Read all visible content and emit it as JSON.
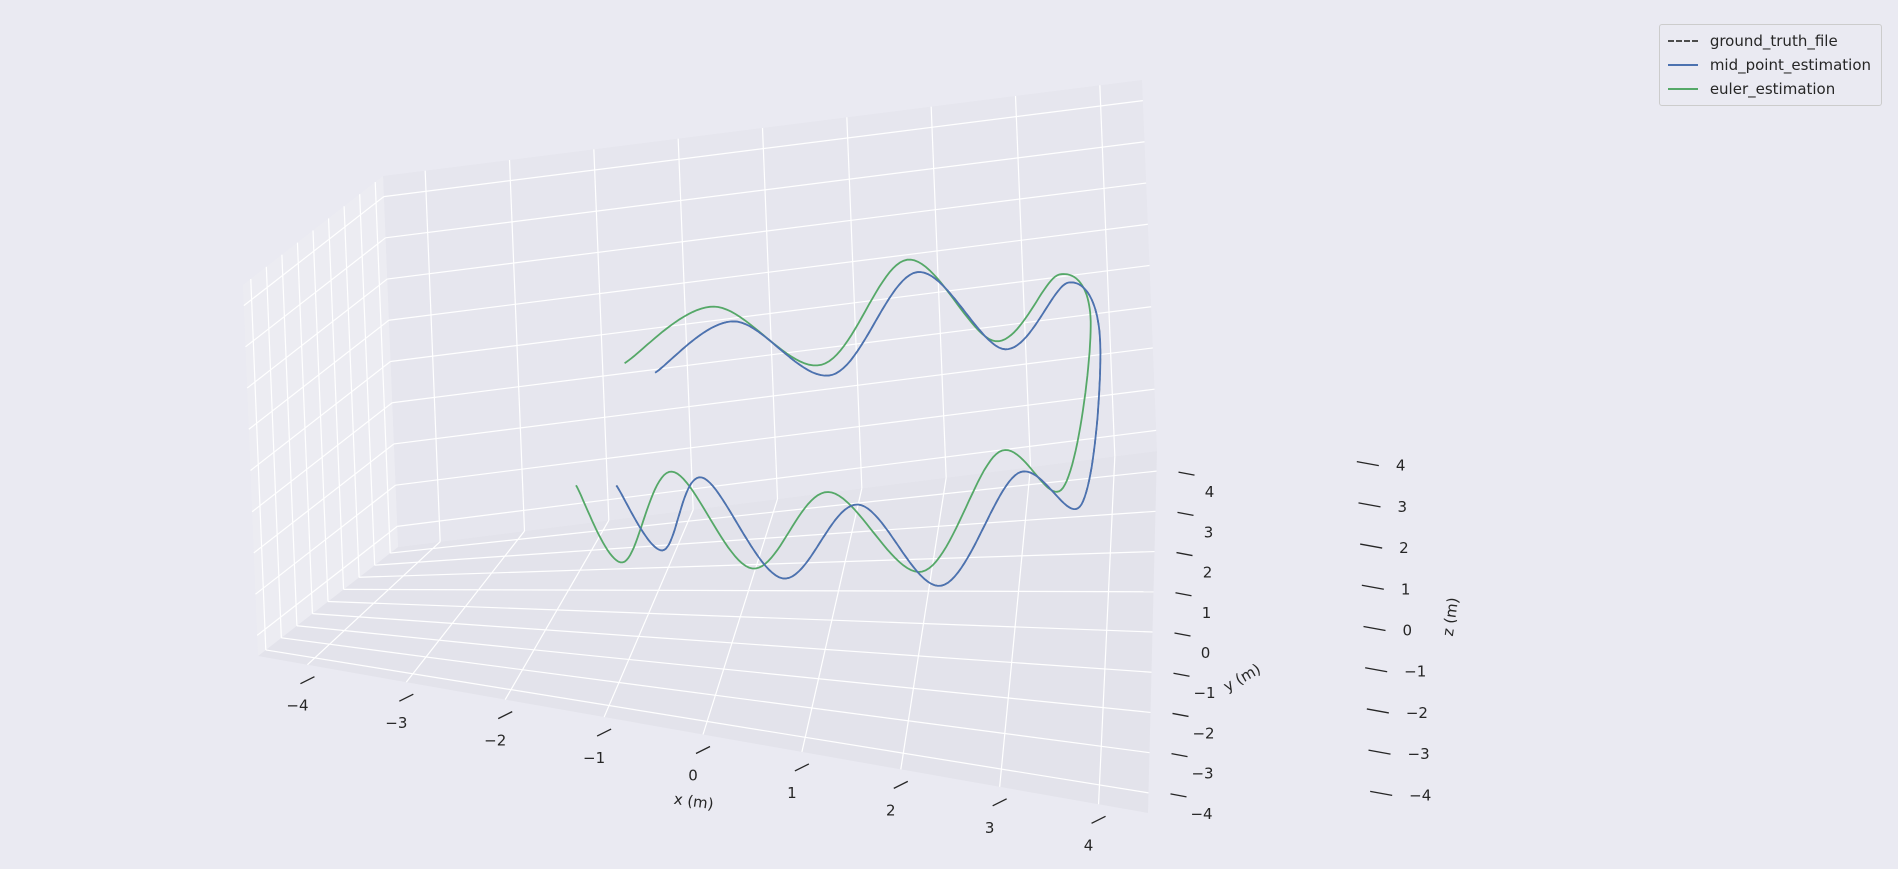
{
  "chart_data": {
    "type": "line",
    "projection": "3d",
    "xlabel": "x (m)",
    "ylabel": "y (m)",
    "zlabel": "z (m)",
    "xlim": [
      -4.5,
      4.5
    ],
    "ylim": [
      -4.5,
      4.5
    ],
    "zlim": [
      -4.5,
      4.5
    ],
    "xticks": [
      -4,
      -3,
      -2,
      -1,
      0,
      1,
      2,
      3,
      4
    ],
    "yticks": [
      -4,
      -3,
      -2,
      -1,
      0,
      1,
      2,
      3,
      4
    ],
    "zticks": [
      -4,
      -3,
      -2,
      -1,
      0,
      1,
      2,
      3,
      4
    ],
    "xtick_labels": [
      "−4",
      "−3",
      "−2",
      "−1",
      "0",
      "1",
      "2",
      "3",
      "4"
    ],
    "ytick_labels": [
      "−4",
      "−3",
      "−2",
      "−1",
      "0",
      "1",
      "2",
      "3",
      "4"
    ],
    "ztick_labels": [
      "−4",
      "−3",
      "−2",
      "−1",
      "0",
      "1",
      "2",
      "3",
      "4"
    ],
    "grid": true,
    "legend_position": "top-right",
    "series": [
      {
        "name": "ground_truth_file",
        "color": "#4c4c4c",
        "style": "dashed",
        "x": [
          -1.0,
          -0.5,
          0.0,
          0.8,
          1.6,
          2.4,
          3.2,
          3.8,
          4.0,
          3.6,
          2.8,
          1.8,
          0.8,
          -0.2,
          -1.0
        ],
        "y": [
          -2.5,
          -2.9,
          -3.5,
          -3.6,
          -3.5,
          -3.0,
          -2.0,
          -0.5,
          1.5,
          3.2,
          3.8,
          3.9,
          3.5,
          2.5,
          1.5
        ],
        "z": [
          0.0,
          -1.2,
          1.1,
          -1.0,
          1.0,
          -1.1,
          1.0,
          -1.0,
          1.2,
          1.0,
          -1.0,
          1.0,
          -1.0,
          1.1,
          0.5
        ]
      },
      {
        "name": "mid_point_estimation",
        "color": "#4c72b0",
        "style": "solid",
        "x": [
          -1.0,
          -0.5,
          0.0,
          0.8,
          1.6,
          2.4,
          3.2,
          3.8,
          4.0,
          3.6,
          2.8,
          1.8,
          0.8,
          -0.2,
          -1.0
        ],
        "y": [
          -2.5,
          -2.9,
          -3.5,
          -3.6,
          -3.5,
          -3.0,
          -2.0,
          -0.5,
          1.5,
          3.2,
          3.8,
          3.9,
          3.5,
          2.5,
          1.5
        ],
        "z": [
          0.0,
          -1.2,
          1.1,
          -1.0,
          1.0,
          -1.1,
          1.0,
          -1.0,
          1.2,
          1.0,
          -1.0,
          1.0,
          -1.0,
          1.1,
          0.5
        ]
      },
      {
        "name": "euler_estimation",
        "color": "#55a868",
        "style": "solid",
        "x": [
          -1.4,
          -0.9,
          -0.3,
          0.5,
          1.3,
          2.2,
          3.0,
          3.6,
          3.9,
          3.5,
          2.7,
          1.7,
          0.7,
          -0.4,
          -1.3
        ],
        "y": [
          -2.7,
          -3.1,
          -3.6,
          -3.7,
          -3.5,
          -2.9,
          -1.8,
          -0.3,
          1.6,
          3.1,
          3.7,
          3.8,
          3.3,
          2.3,
          1.2
        ],
        "z": [
          0.0,
          -1.5,
          1.2,
          -0.8,
          1.2,
          -0.9,
          1.3,
          -0.8,
          1.5,
          1.3,
          -0.7,
          1.4,
          -0.6,
          1.6,
          0.9
        ]
      }
    ]
  }
}
